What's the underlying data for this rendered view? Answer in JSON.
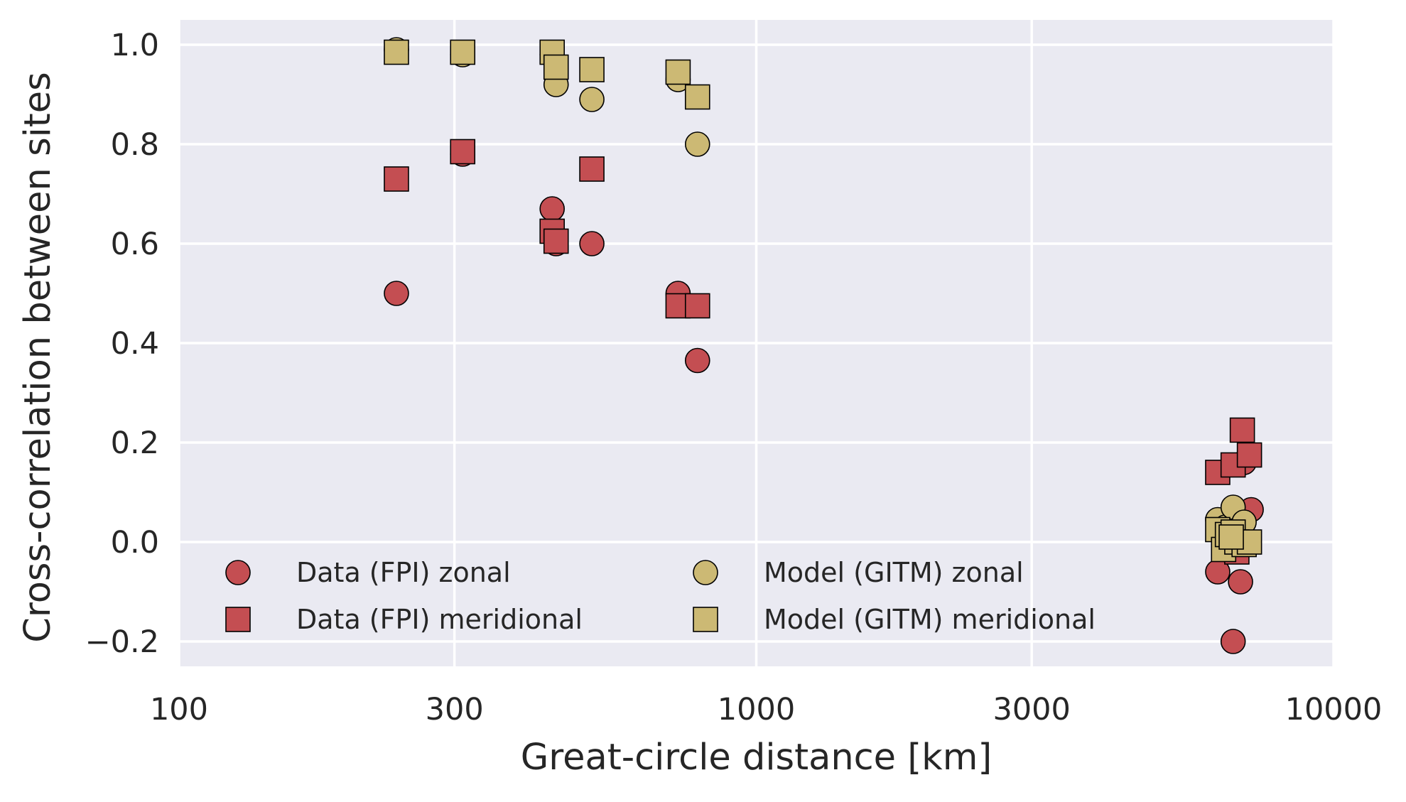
{
  "chart_data": {
    "type": "scatter",
    "xlabel": "Great-circle distance [km]",
    "ylabel": "Cross-correlation between sites",
    "x_scale": "log",
    "xlim": [
      100,
      10000
    ],
    "ylim": [
      -0.25,
      1.05
    ],
    "x_ticks": [
      100,
      300,
      1000,
      3000,
      10000
    ],
    "x_tick_labels": [
      "100",
      "300",
      "1000",
      "3000",
      "10000"
    ],
    "y_ticks": [
      -0.2,
      0.0,
      0.2,
      0.4,
      0.6,
      0.8,
      1.0
    ],
    "y_tick_labels": [
      "−0.2",
      "0.0",
      "0.2",
      "0.4",
      "0.6",
      "0.8",
      "1.0"
    ],
    "grid": true,
    "legend_position": "lower-left",
    "legend_columns": 2,
    "colors": {
      "background": "#eaeaf2",
      "grid": "#ffffff",
      "data": "#c44e52",
      "model": "#ccb974",
      "marker_edge": "#000000"
    },
    "series": [
      {
        "name": "Data (FPI) zonal",
        "marker": "circle",
        "color": "#c44e52",
        "points": [
          [
            238,
            0.5
          ],
          [
            310,
            0.78
          ],
          [
            443,
            0.67
          ],
          [
            450,
            0.6
          ],
          [
            519,
            0.6
          ],
          [
            732,
            0.5
          ],
          [
            791,
            0.365
          ],
          [
            6300,
            -0.06
          ],
          [
            6700,
            -0.2
          ],
          [
            6900,
            -0.08
          ],
          [
            7000,
            0.16
          ],
          [
            7200,
            0.065
          ],
          [
            6800,
            -0.01
          ]
        ]
      },
      {
        "name": "Data (FPI) meridional",
        "marker": "square",
        "color": "#c44e52",
        "points": [
          [
            238,
            0.73
          ],
          [
            310,
            0.785
          ],
          [
            443,
            0.625
          ],
          [
            450,
            0.605
          ],
          [
            519,
            0.75
          ],
          [
            732,
            0.475
          ],
          [
            791,
            0.475
          ],
          [
            6300,
            0.14
          ],
          [
            6700,
            0.155
          ],
          [
            6950,
            0.225
          ],
          [
            7150,
            0.175
          ],
          [
            6600,
            0.01
          ],
          [
            6900,
            0.02
          ],
          [
            6800,
            -0.02
          ]
        ]
      },
      {
        "name": "Model (GITM) zonal",
        "marker": "circle",
        "color": "#ccb974",
        "points": [
          [
            238,
            0.99
          ],
          [
            310,
            0.98
          ],
          [
            443,
            0.98
          ],
          [
            450,
            0.92
          ],
          [
            519,
            0.89
          ],
          [
            732,
            0.93
          ],
          [
            791,
            0.8
          ],
          [
            6300,
            0.045
          ],
          [
            6500,
            0.03
          ],
          [
            6700,
            0.07
          ],
          [
            6900,
            0.02
          ],
          [
            7000,
            0.04
          ]
        ]
      },
      {
        "name": "Model (GITM) meridional",
        "marker": "square",
        "color": "#ccb974",
        "points": [
          [
            238,
            0.985
          ],
          [
            310,
            0.985
          ],
          [
            443,
            0.985
          ],
          [
            450,
            0.955
          ],
          [
            519,
            0.95
          ],
          [
            732,
            0.945
          ],
          [
            791,
            0.895
          ],
          [
            6300,
            0.025
          ],
          [
            6450,
            -0.015
          ],
          [
            6550,
            0.015
          ],
          [
            6700,
            0.02
          ],
          [
            6800,
            0.0
          ],
          [
            7000,
            -0.005
          ],
          [
            7150,
            0.0
          ],
          [
            6650,
            0.01
          ]
        ]
      }
    ]
  }
}
